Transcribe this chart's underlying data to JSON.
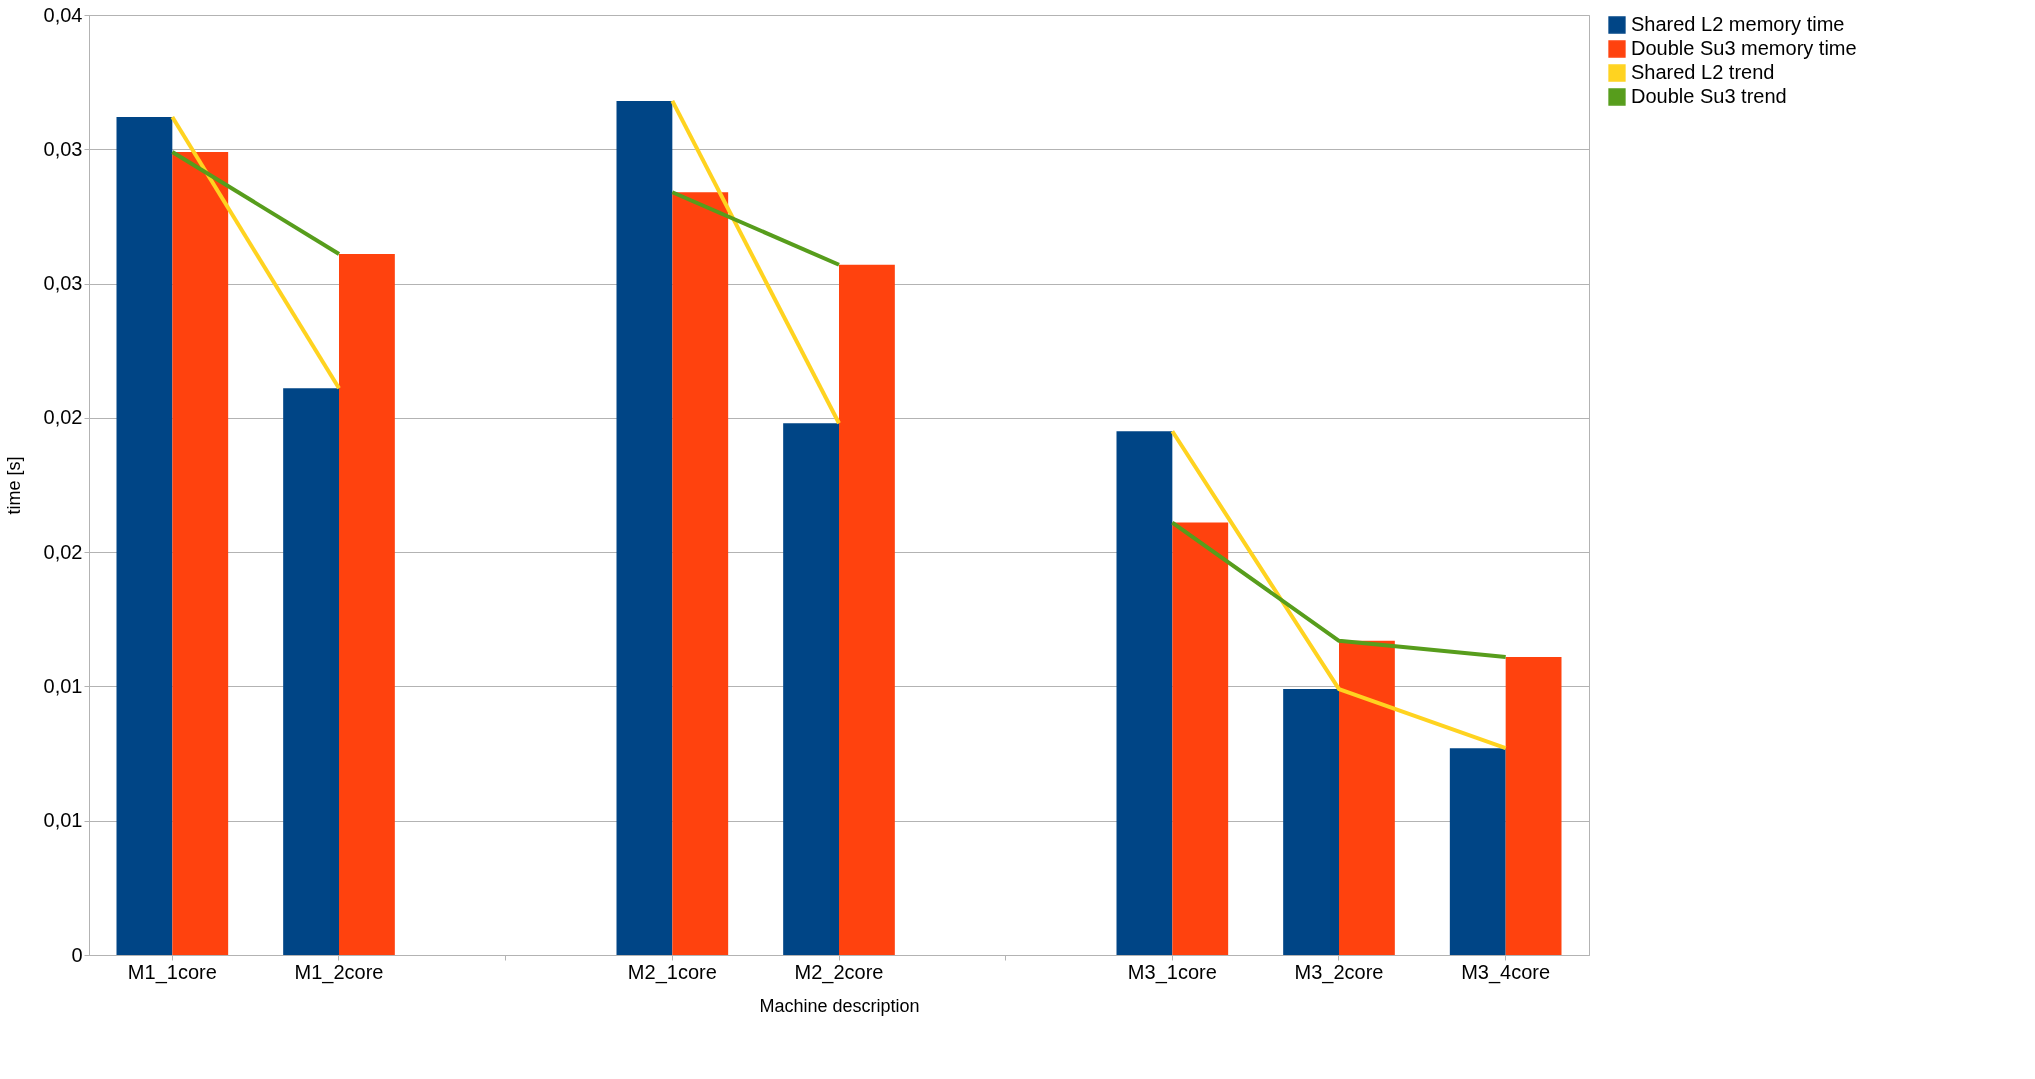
{
  "chart_data": {
    "type": "bar",
    "xlabel": "Machine description",
    "ylabel": "time [s]",
    "categories": [
      "M1_1core",
      "M1_2core",
      null,
      "M2_1core",
      "M2_2core",
      null,
      "M3_1core",
      "M3_2core",
      "M3_4core"
    ],
    "series": [
      {
        "name": "Shared L2 memory time",
        "color": "#004586",
        "values": [
          0.0312,
          0.0211,
          null,
          0.0318,
          0.0198,
          null,
          0.0195,
          0.0099,
          0.0077
        ]
      },
      {
        "name": "Double Su3 memory time",
        "color": "#ff420e",
        "values": [
          0.0299,
          0.0261,
          null,
          0.0284,
          0.0257,
          null,
          0.0161,
          0.0117,
          0.0111
        ]
      },
      {
        "name": "Shared L2 trend",
        "type": "line",
        "color": "#ffd320",
        "values": [
          0.0312,
          0.0211,
          null,
          0.0318,
          0.0198,
          null,
          0.0195,
          0.0099,
          0.0077
        ]
      },
      {
        "name": "Double Su3 trend",
        "type": "line",
        "color": "#579d1c",
        "values": [
          0.0299,
          0.0261,
          null,
          0.0284,
          0.0257,
          null,
          0.0161,
          0.0117,
          0.0111
        ]
      }
    ],
    "ylim": [
      0,
      0.035
    ],
    "yticks": [
      0,
      {
        "value": 0.005,
        "label": "0,01"
      },
      {
        "value": 0.01,
        "label": "0,01"
      },
      {
        "value": 0.015,
        "label": "0,02"
      },
      {
        "value": 0.02,
        "label": "0,02"
      },
      {
        "value": 0.025,
        "label": "0,03"
      },
      {
        "value": 0.03,
        "label": "0,03"
      },
      {
        "value": 0.035,
        "label": "0,04"
      }
    ],
    "grid": "y",
    "legend": "right"
  }
}
